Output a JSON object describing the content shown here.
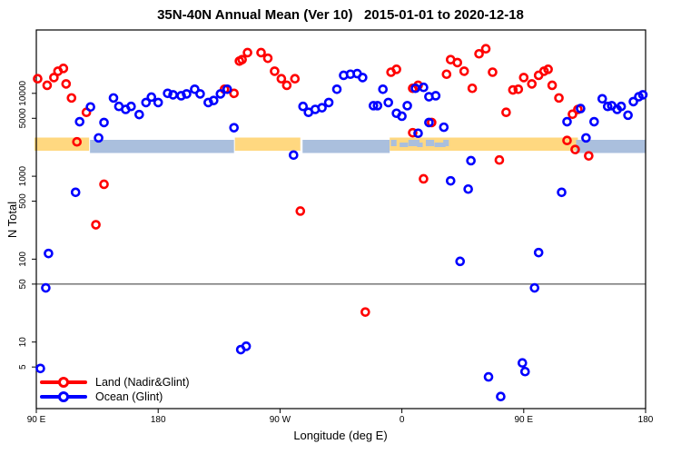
{
  "title": "35N-40N Annual Mean (Ver 10)   2015-01-01 to 2020-12-18",
  "legend": {
    "items": [
      {
        "label": "Land (Nadir&Glint)",
        "color": "#ff0000"
      },
      {
        "label": "Ocean (Glint)",
        "color": "#0000ff"
      }
    ]
  },
  "chart_data": {
    "type": "scatter",
    "title": "35N-40N Annual Mean (Ver 10)   2015-01-01 to 2020-12-18",
    "xlabel": "Longitude (deg E)",
    "ylabel": "N Total",
    "x_axis": {
      "note": "longitude axis runs eastward from 90E and wraps around the globe (90E..180..90W..0..90E..180)",
      "range": [
        90,
        540
      ],
      "ticks": [
        {
          "value": 90,
          "label": "90 E"
        },
        {
          "value": 180,
          "label": "180"
        },
        {
          "value": 270,
          "label": "90 W"
        },
        {
          "value": 360,
          "label": "0"
        },
        {
          "value": 450,
          "label": "90 E"
        },
        {
          "value": 540,
          "label": "180"
        }
      ]
    },
    "y_axis": {
      "scale": "log",
      "range": [
        1.6,
        58000
      ],
      "ticks": [
        10000,
        5000,
        1000,
        500,
        100,
        50,
        10,
        5
      ]
    },
    "reference_line_y": 50,
    "grid": false,
    "legend_position": "bottom-left",
    "surface_band": {
      "center_value": 2300,
      "land_color": "#ffd880",
      "ocean_color": "#aabfdd",
      "segments": [
        {
          "from": 90,
          "to": 129,
          "surface": "land"
        },
        {
          "from": 131,
          "to": 236,
          "surface": "ocean"
        },
        {
          "from": 238,
          "to": 285,
          "surface": "land"
        },
        {
          "from": 288,
          "to": 351,
          "surface": "ocean"
        },
        {
          "from": 351,
          "to": 397,
          "surface": "mixed"
        },
        {
          "from": 397,
          "to": 490,
          "surface": "land"
        },
        {
          "from": 490,
          "to": 540,
          "surface": "ocean"
        }
      ]
    },
    "series": [
      {
        "name": "Land (Nadir&Glint)",
        "color": "#ff0000",
        "points": [
          [
            91,
            15000
          ],
          [
            98,
            12500
          ],
          [
            103,
            15500
          ],
          [
            106,
            18500
          ],
          [
            110,
            20000
          ],
          [
            112,
            13000
          ],
          [
            116,
            8800
          ],
          [
            127,
            5900
          ],
          [
            120,
            2600
          ],
          [
            134,
            260
          ],
          [
            140,
            800
          ],
          [
            229,
            11200
          ],
          [
            236,
            10000
          ],
          [
            240,
            24500
          ],
          [
            242,
            25500
          ],
          [
            246,
            31000
          ],
          [
            256,
            31000
          ],
          [
            261,
            26500
          ],
          [
            266,
            18500
          ],
          [
            271,
            15000
          ],
          [
            275,
            12500
          ],
          [
            281,
            15000
          ],
          [
            285,
            380
          ],
          [
            333,
            23
          ],
          [
            352,
            18000
          ],
          [
            356,
            19500
          ],
          [
            368,
            11500
          ],
          [
            372,
            12500
          ],
          [
            368,
            3350
          ],
          [
            382,
            4450
          ],
          [
            376,
            930
          ],
          [
            393,
            17000
          ],
          [
            396,
            25500
          ],
          [
            401,
            23500
          ],
          [
            406,
            18500
          ],
          [
            412,
            11500
          ],
          [
            417,
            30000
          ],
          [
            422,
            34500
          ],
          [
            427,
            18000
          ],
          [
            432,
            1570
          ],
          [
            437,
            5900
          ],
          [
            442,
            11000
          ],
          [
            446,
            11200
          ],
          [
            450,
            15500
          ],
          [
            456,
            13000
          ],
          [
            461,
            16500
          ],
          [
            465,
            18500
          ],
          [
            468,
            19500
          ],
          [
            471,
            12500
          ],
          [
            476,
            8800
          ],
          [
            482,
            2700
          ],
          [
            486,
            5600
          ],
          [
            490,
            6400
          ],
          [
            488,
            2100
          ],
          [
            498,
            1760
          ]
        ]
      },
      {
        "name": "Ocean (Glint)",
        "color": "#0000ff",
        "points": [
          [
            122,
            4550
          ],
          [
            130,
            6850
          ],
          [
            136,
            2900
          ],
          [
            140,
            4450
          ],
          [
            147,
            8800
          ],
          [
            151,
            6950
          ],
          [
            156,
            6400
          ],
          [
            160,
            6950
          ],
          [
            166,
            5550
          ],
          [
            171,
            7750
          ],
          [
            175,
            9000
          ],
          [
            180,
            7750
          ],
          [
            187,
            10000
          ],
          [
            191,
            9600
          ],
          [
            197,
            9350
          ],
          [
            201,
            9850
          ],
          [
            207,
            11200
          ],
          [
            211,
            9850
          ],
          [
            217,
            7750
          ],
          [
            221,
            8200
          ],
          [
            226,
            9850
          ],
          [
            231,
            11200
          ],
          [
            236,
            3850
          ],
          [
            280,
            1800
          ],
          [
            287,
            6950
          ],
          [
            291,
            5900
          ],
          [
            296,
            6400
          ],
          [
            301,
            6700
          ],
          [
            306,
            7750
          ],
          [
            312,
            11200
          ],
          [
            317,
            16500
          ],
          [
            322,
            17000
          ],
          [
            327,
            17300
          ],
          [
            331,
            15500
          ],
          [
            339,
            7100
          ],
          [
            342,
            7100
          ],
          [
            346,
            11200
          ],
          [
            350,
            7750
          ],
          [
            356,
            5750
          ],
          [
            360,
            5300
          ],
          [
            364,
            7100
          ],
          [
            370,
            11500
          ],
          [
            376,
            11800
          ],
          [
            380,
            9100
          ],
          [
            385,
            9350
          ],
          [
            372,
            3300
          ],
          [
            380,
            4450
          ],
          [
            391,
            3900
          ],
          [
            396,
            880
          ],
          [
            409,
            700
          ],
          [
            403,
            94
          ],
          [
            411,
            1540
          ],
          [
            424,
            3.8
          ],
          [
            433,
            2.2
          ],
          [
            449,
            5.6
          ],
          [
            451,
            4.4
          ],
          [
            458,
            45
          ],
          [
            461,
            120
          ],
          [
            478,
            640
          ],
          [
            482,
            4550
          ],
          [
            492,
            6550
          ],
          [
            496,
            2900
          ],
          [
            502,
            4550
          ],
          [
            508,
            8600
          ],
          [
            512,
            6950
          ],
          [
            515,
            7100
          ],
          [
            519,
            6400
          ],
          [
            522,
            6950
          ],
          [
            527,
            5450
          ],
          [
            531,
            7950
          ],
          [
            535,
            9100
          ],
          [
            538,
            9600
          ],
          [
            99,
            117
          ],
          [
            97,
            45
          ],
          [
            93,
            4.8
          ],
          [
            119,
            640
          ],
          [
            241,
            8.1
          ],
          [
            245,
            8.9
          ]
        ]
      }
    ]
  }
}
